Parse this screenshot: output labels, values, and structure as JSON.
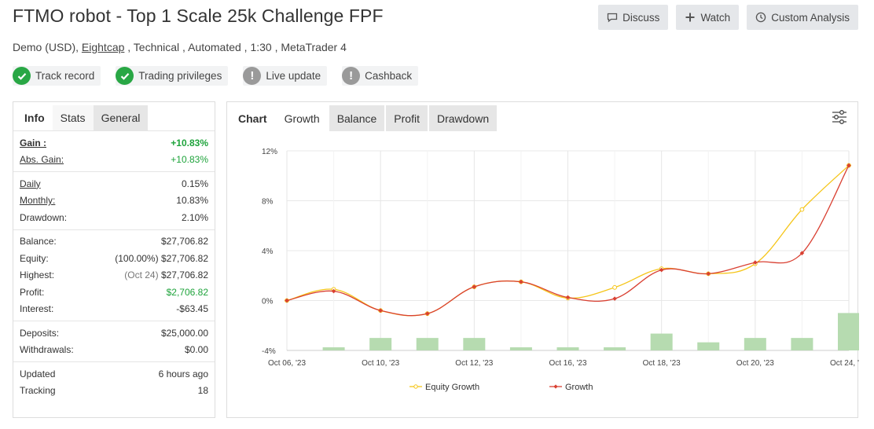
{
  "header": {
    "title": "FTMO robot - Top 1 Scale 25k Challenge FPF",
    "actions": [
      {
        "label": "Discuss",
        "icon": "chat-icon"
      },
      {
        "label": "Watch",
        "icon": "plus-icon"
      },
      {
        "label": "Custom Analysis",
        "icon": "clock-icon"
      }
    ],
    "subtitle_prefix": "Demo (USD), ",
    "broker": "Eightcap",
    "subtitle_suffix": " , Technical , Automated , 1:30 , MetaTrader 4"
  },
  "badges": [
    {
      "label": "Track record",
      "status": "check"
    },
    {
      "label": "Trading privileges",
      "status": "check"
    },
    {
      "label": "Live update",
      "status": "exclamation"
    },
    {
      "label": "Cashback",
      "status": "exclamation"
    }
  ],
  "left_panel": {
    "tabs": [
      "Info",
      "Stats",
      "General"
    ],
    "stats": {
      "gain_label": "Gain :",
      "gain_value": "+10.83%",
      "abs_gain_label": "Abs. Gain:",
      "abs_gain_value": "+10.83%",
      "daily_label": "Daily",
      "daily_value": "0.15%",
      "monthly_label": "Monthly:",
      "monthly_value": "10.83%",
      "drawdown_label": "Drawdown:",
      "drawdown_value": "2.10%",
      "balance_label": "Balance:",
      "balance_value": "$27,706.82",
      "equity_label": "Equity:",
      "equity_note": "(100.00%)",
      "equity_value": "$27,706.82",
      "highest_label": "Highest:",
      "highest_note": "(Oct 24)",
      "highest_value": "$27,706.82",
      "profit_label": "Profit:",
      "profit_value": "$2,706.82",
      "interest_label": "Interest:",
      "interest_value": "-$63.45",
      "deposits_label": "Deposits:",
      "deposits_value": "$25,000.00",
      "withdrawals_label": "Withdrawals:",
      "withdrawals_value": "$0.00",
      "updated_label": "Updated",
      "updated_value": "6 hours ago",
      "tracking_label": "Tracking",
      "tracking_value": "18"
    }
  },
  "chart_panel": {
    "label": "Chart",
    "tabs": [
      "Growth",
      "Balance",
      "Profit",
      "Drawdown"
    ],
    "active_tab": "Growth"
  },
  "chart_data": {
    "type": "line",
    "x_tick_labels": [
      "Oct 06, '23",
      "Oct 10, '23",
      "Oct 12, '23",
      "Oct 16, '23",
      "Oct 18, '23",
      "Oct 20, '23",
      "Oct 24, '23"
    ],
    "y_tick_labels": [
      "12%",
      "8%",
      "4%",
      "0%",
      "-4%"
    ],
    "ylim": [
      -4,
      12
    ],
    "series": [
      {
        "name": "Equity Growth",
        "color": "#f5c518",
        "values": [
          0,
          0.9,
          -0.8,
          -1.05,
          1.1,
          1.5,
          0.2,
          1.05,
          2.55,
          2.15,
          2.95,
          7.3,
          10.83
        ]
      },
      {
        "name": "Growth",
        "color": "#d94032",
        "values": [
          0,
          0.75,
          -0.8,
          -1.05,
          1.1,
          1.5,
          0.25,
          0.15,
          2.45,
          2.15,
          3.05,
          3.8,
          10.83
        ]
      }
    ],
    "bars": {
      "color": "#b6dbb0",
      "values": [
        null,
        0.25,
        1.0,
        1.0,
        1.0,
        0.25,
        0.25,
        0.25,
        1.35,
        0.65,
        1.0,
        1.0,
        3.0
      ]
    },
    "grid": true,
    "legend": "bottom-center"
  }
}
